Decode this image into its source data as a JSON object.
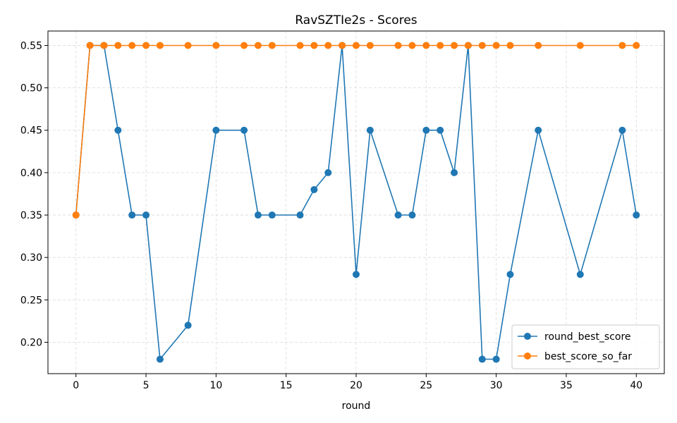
{
  "chart_data": {
    "type": "line",
    "title": "RavSZTIe2s - Scores",
    "xlabel": "round",
    "ylabel": "",
    "xlim": [
      -2,
      42
    ],
    "ylim": [
      0.163,
      0.567
    ],
    "xticks": [
      0,
      5,
      10,
      15,
      20,
      25,
      30,
      35,
      40
    ],
    "yticks": [
      0.2,
      0.25,
      0.3,
      0.35,
      0.4,
      0.45,
      0.5,
      0.55
    ],
    "grid": true,
    "legend_position": "lower-right",
    "x": [
      0,
      1,
      2,
      3,
      4,
      5,
      6,
      8,
      10,
      12,
      13,
      14,
      16,
      17,
      18,
      19,
      20,
      21,
      23,
      24,
      25,
      26,
      27,
      28,
      29,
      30,
      31,
      33,
      36,
      39,
      40
    ],
    "series": [
      {
        "name": "round_best_score",
        "color": "#1f77b4",
        "values": [
          0.35,
          0.55,
          0.55,
          0.45,
          0.35,
          0.35,
          0.18,
          0.22,
          0.45,
          0.45,
          0.35,
          0.35,
          0.35,
          0.38,
          0.4,
          0.55,
          0.28,
          0.45,
          0.35,
          0.35,
          0.45,
          0.45,
          0.4,
          0.55,
          0.18,
          0.18,
          0.28,
          0.45,
          0.28,
          0.45,
          0.35
        ]
      },
      {
        "name": "best_score_so_far",
        "color": "#ff7f0e",
        "values": [
          0.35,
          0.55,
          0.55,
          0.55,
          0.55,
          0.55,
          0.55,
          0.55,
          0.55,
          0.55,
          0.55,
          0.55,
          0.55,
          0.55,
          0.55,
          0.55,
          0.55,
          0.55,
          0.55,
          0.55,
          0.55,
          0.55,
          0.55,
          0.55,
          0.55,
          0.55,
          0.55,
          0.55,
          0.55,
          0.55,
          0.55
        ]
      }
    ]
  }
}
